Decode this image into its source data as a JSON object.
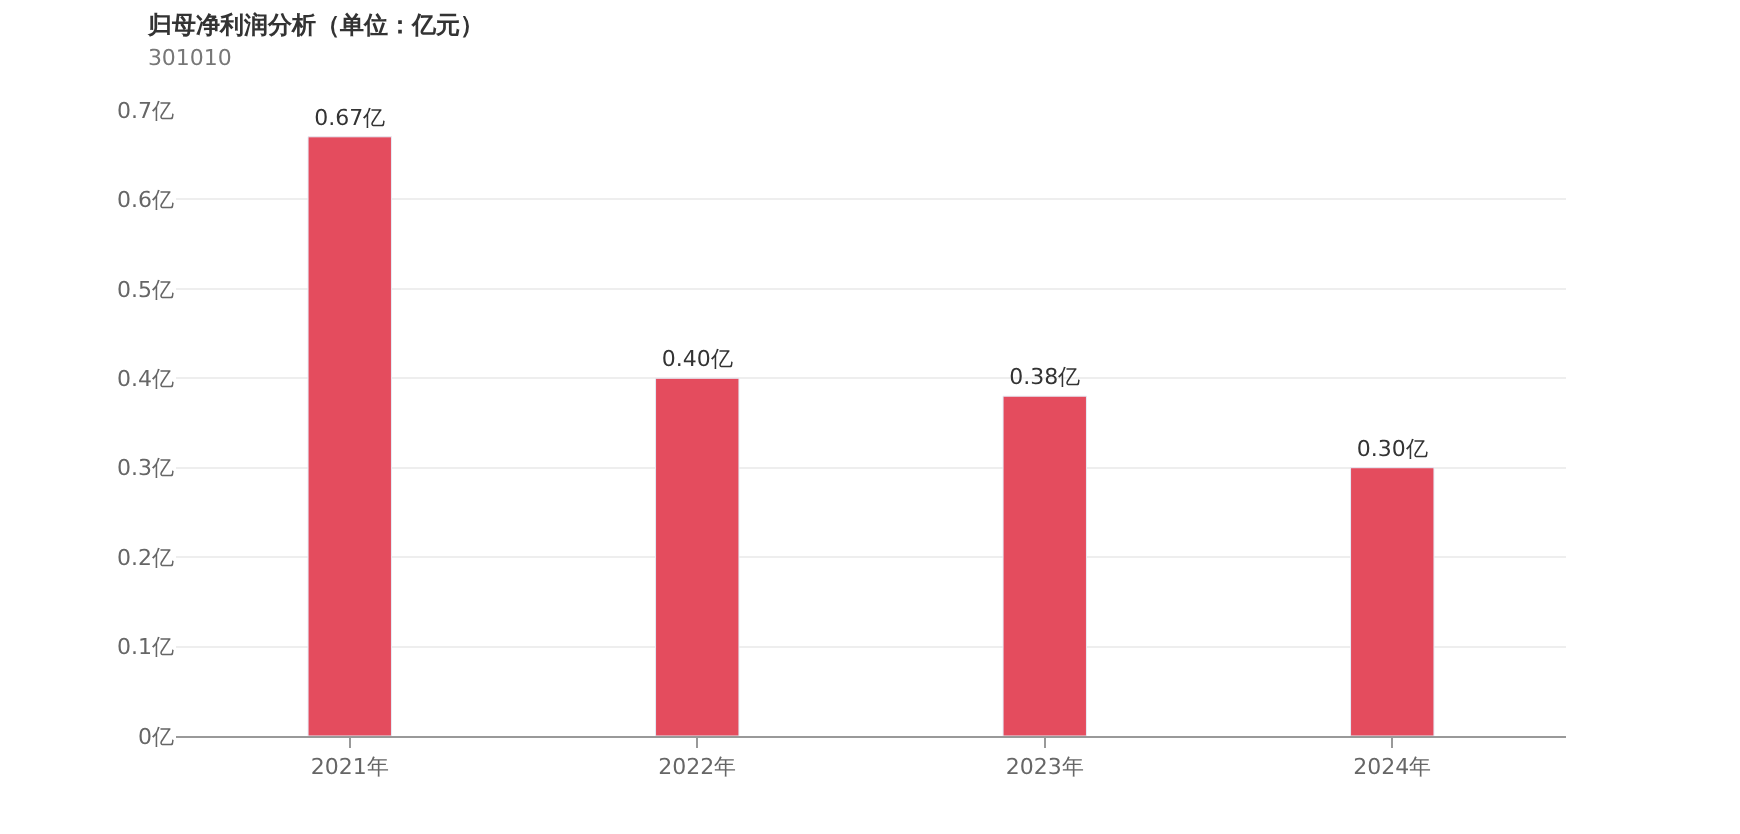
{
  "chart_data": {
    "type": "bar",
    "title": "归母净利润分析（单位：亿元）",
    "subtitle": "301010",
    "categories": [
      "2021年",
      "2022年",
      "2023年",
      "2024年"
    ],
    "values": [
      0.67,
      0.4,
      0.38,
      0.3
    ],
    "value_labels": [
      "0.67亿",
      "0.40亿",
      "0.38亿",
      "0.30亿"
    ],
    "color": "#e44c5e",
    "ylim": [
      0,
      0.7
    ],
    "yticks": [
      {
        "value": 0,
        "label": "0亿"
      },
      {
        "value": 0.1,
        "label": "0.1亿"
      },
      {
        "value": 0.2,
        "label": "0.2亿"
      },
      {
        "value": 0.3,
        "label": "0.3亿"
      },
      {
        "value": 0.4,
        "label": "0.4亿"
      },
      {
        "value": 0.5,
        "label": "0.5亿"
      },
      {
        "value": 0.6,
        "label": "0.6亿"
      },
      {
        "value": 0.7,
        "label": "0.7亿"
      }
    ],
    "grid": "y",
    "legend": false
  }
}
